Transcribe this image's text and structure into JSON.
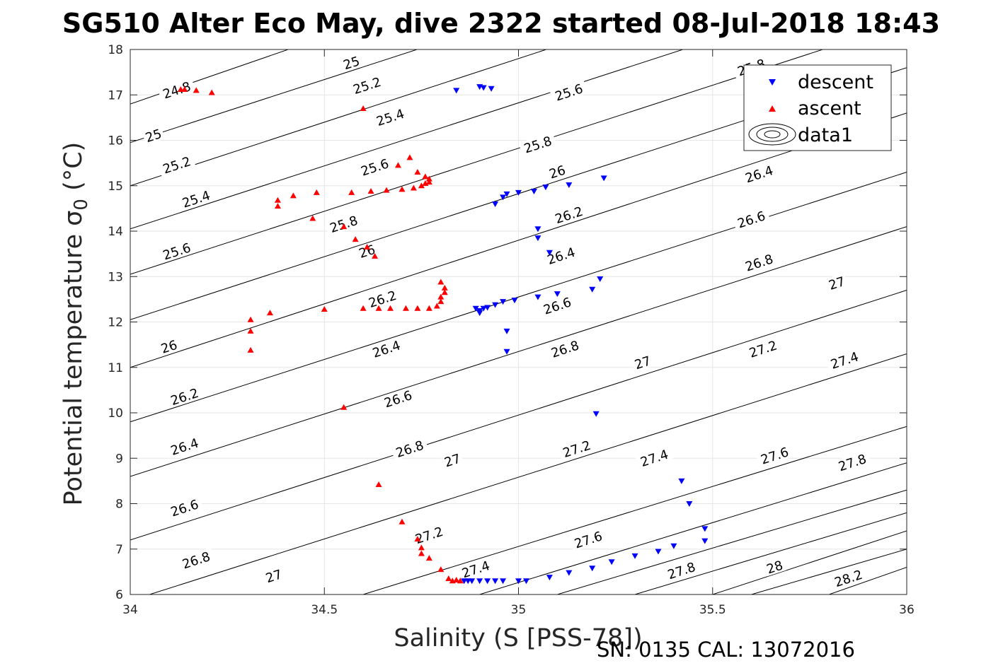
{
  "chart_data": {
    "type": "scatter",
    "title": "SG510 Alter Eco May, dive 2322 started 08-Jul-2018 18:43",
    "xlabel": "Salinity (S [PSS-78])",
    "ylabel": "Potential temperature σ₀ (°C)",
    "ylabel_main": "Potential temperature ",
    "ylabel_sigma": "σ",
    "ylabel_sub": "0",
    "ylabel_unit": " (°C)",
    "footer": "SN: 0135  CAL: 13072016",
    "xlim": [
      34,
      36
    ],
    "ylim": [
      6,
      18
    ],
    "xticks": [
      "34",
      "34.5",
      "35",
      "35.5",
      "36"
    ],
    "yticks": [
      "6",
      "7",
      "8",
      "9",
      "10",
      "11",
      "12",
      "13",
      "14",
      "15",
      "16",
      "17",
      "18"
    ],
    "grid": true,
    "legend_position": "top-right",
    "colors": {
      "descent": "#0000ff",
      "ascent": "#ff0000",
      "contour": "#000000",
      "grid": "#e6e6e6"
    },
    "series": [
      {
        "name": "descent",
        "marker": "triangle-down",
        "color": "#0000ff",
        "points": [
          [
            34.84,
            17.1
          ],
          [
            34.9,
            17.18
          ],
          [
            34.91,
            17.16
          ],
          [
            34.93,
            17.14
          ],
          [
            34.94,
            14.6
          ],
          [
            34.96,
            14.75
          ],
          [
            34.97,
            14.82
          ],
          [
            35.0,
            14.85
          ],
          [
            35.04,
            14.88
          ],
          [
            35.07,
            14.97
          ],
          [
            35.13,
            15.02
          ],
          [
            35.22,
            15.17
          ],
          [
            35.05,
            14.05
          ],
          [
            35.05,
            13.85
          ],
          [
            35.08,
            13.53
          ],
          [
            34.89,
            12.3
          ],
          [
            34.9,
            12.25
          ],
          [
            34.9,
            12.2
          ],
          [
            34.91,
            12.3
          ],
          [
            34.92,
            12.32
          ],
          [
            34.94,
            12.38
          ],
          [
            34.96,
            12.45
          ],
          [
            34.99,
            12.48
          ],
          [
            35.05,
            12.55
          ],
          [
            35.1,
            12.62
          ],
          [
            35.19,
            12.72
          ],
          [
            35.21,
            12.95
          ],
          [
            34.97,
            11.8
          ],
          [
            34.97,
            11.35
          ],
          [
            35.2,
            9.98
          ],
          [
            35.42,
            8.5
          ],
          [
            35.44,
            8.0
          ],
          [
            35.48,
            7.45
          ],
          [
            35.48,
            7.18
          ],
          [
            34.86,
            6.3
          ],
          [
            34.87,
            6.3
          ],
          [
            34.88,
            6.3
          ],
          [
            34.9,
            6.3
          ],
          [
            34.92,
            6.3
          ],
          [
            34.94,
            6.3
          ],
          [
            34.96,
            6.3
          ],
          [
            35.0,
            6.3
          ],
          [
            35.02,
            6.3
          ],
          [
            35.08,
            6.38
          ],
          [
            35.13,
            6.48
          ],
          [
            35.19,
            6.58
          ],
          [
            35.24,
            6.72
          ],
          [
            35.3,
            6.85
          ],
          [
            35.36,
            6.95
          ],
          [
            35.4,
            7.07
          ]
        ]
      },
      {
        "name": "ascent",
        "marker": "triangle-up",
        "color": "#ff0000",
        "points": [
          [
            34.13,
            17.12
          ],
          [
            34.14,
            17.12
          ],
          [
            34.17,
            17.1
          ],
          [
            34.21,
            17.05
          ],
          [
            34.6,
            16.7
          ],
          [
            34.72,
            15.62
          ],
          [
            34.69,
            15.45
          ],
          [
            34.74,
            15.3
          ],
          [
            34.76,
            15.2
          ],
          [
            34.77,
            15.15
          ],
          [
            34.77,
            15.08
          ],
          [
            34.76,
            15.05
          ],
          [
            34.75,
            15.0
          ],
          [
            34.73,
            14.95
          ],
          [
            34.7,
            14.92
          ],
          [
            34.66,
            14.9
          ],
          [
            34.62,
            14.88
          ],
          [
            34.57,
            14.85
          ],
          [
            34.48,
            14.85
          ],
          [
            34.42,
            14.78
          ],
          [
            34.38,
            14.68
          ],
          [
            34.38,
            14.55
          ],
          [
            34.47,
            14.28
          ],
          [
            34.55,
            14.1
          ],
          [
            34.58,
            13.82
          ],
          [
            34.61,
            13.65
          ],
          [
            34.63,
            13.45
          ],
          [
            34.8,
            12.88
          ],
          [
            34.81,
            12.75
          ],
          [
            34.81,
            12.65
          ],
          [
            34.8,
            12.55
          ],
          [
            34.8,
            12.45
          ],
          [
            34.79,
            12.35
          ],
          [
            34.77,
            12.3
          ],
          [
            34.74,
            12.3
          ],
          [
            34.71,
            12.3
          ],
          [
            34.67,
            12.3
          ],
          [
            34.64,
            12.3
          ],
          [
            34.6,
            12.3
          ],
          [
            34.5,
            12.28
          ],
          [
            34.36,
            12.2
          ],
          [
            34.31,
            12.05
          ],
          [
            34.31,
            11.8
          ],
          [
            34.31,
            11.38
          ],
          [
            34.55,
            10.12
          ],
          [
            34.64,
            8.42
          ],
          [
            34.7,
            7.6
          ],
          [
            34.74,
            7.22
          ],
          [
            34.75,
            7.03
          ],
          [
            34.75,
            6.9
          ],
          [
            34.77,
            6.8
          ],
          [
            34.8,
            6.55
          ],
          [
            34.82,
            6.35
          ],
          [
            34.83,
            6.3
          ],
          [
            34.84,
            6.32
          ],
          [
            34.85,
            6.3
          ]
        ]
      }
    ],
    "contours": {
      "name": "data1",
      "levels": [
        "24.8",
        "25",
        "25.2",
        "25.4",
        "25.6",
        "25.8",
        "26",
        "26.2",
        "26.4",
        "26.6",
        "26.8",
        "27",
        "27.2",
        "27.4",
        "27.6",
        "27.8",
        "28",
        "28.2"
      ],
      "lines": [
        {
          "level": "24.8",
          "pts": [
            [
              34.0,
              16.8
            ],
            [
              36.0,
              22.7
            ]
          ]
        },
        {
          "level": "25",
          "pts": [
            [
              34.0,
              15.95
            ],
            [
              36.0,
              21.5
            ]
          ]
        },
        {
          "level": "25.2",
          "pts": [
            [
              34.0,
              15.0
            ],
            [
              36.0,
              20.6
            ]
          ]
        },
        {
          "level": "25.4",
          "pts": [
            [
              34.0,
              14.05
            ],
            [
              36.0,
              19.6
            ]
          ]
        },
        {
          "level": "25.6",
          "pts": [
            [
              34.0,
              13.05
            ],
            [
              36.0,
              18.6
            ]
          ]
        },
        {
          "level": "25.8",
          "pts": [
            [
              34.0,
              12.05
            ],
            [
              36.0,
              17.6
            ]
          ]
        },
        {
          "level": "26",
          "pts": [
            [
              34.0,
              11.0
            ],
            [
              36.0,
              16.6
            ]
          ]
        },
        {
          "level": "26.2",
          "pts": [
            [
              34.0,
              9.8
            ],
            [
              36.0,
              15.3
            ]
          ]
        },
        {
          "level": "26.4",
          "pts": [
            [
              34.0,
              8.6
            ],
            [
              36.0,
              14.1
            ]
          ]
        },
        {
          "level": "26.6",
          "pts": [
            [
              34.0,
              7.2
            ],
            [
              36.0,
              12.7
            ]
          ]
        },
        {
          "level": "26.8",
          "pts": [
            [
              34.05,
              6.0
            ],
            [
              36.0,
              11.3
            ]
          ]
        },
        {
          "level": "27",
          "pts": [
            [
              34.6,
              6.0
            ],
            [
              36.0,
              9.7
            ]
          ]
        },
        {
          "level": "27.2",
          "pts": [
            [
              34.9,
              6.0
            ],
            [
              36.0,
              8.9
            ]
          ]
        },
        {
          "level": "27.4",
          "pts": [
            [
              35.1,
              6.0
            ],
            [
              36.0,
              8.3
            ]
          ]
        },
        {
          "level": "27.6",
          "pts": [
            [
              35.3,
              6.0
            ],
            [
              36.0,
              7.8
            ]
          ]
        },
        {
          "level": "27.8",
          "pts": [
            [
              35.5,
              6.0
            ],
            [
              36.0,
              7.4
            ]
          ]
        },
        {
          "level": "28",
          "pts": [
            [
              35.6,
              6.0
            ],
            [
              36.0,
              7.0
            ]
          ]
        },
        {
          "level": "28.2",
          "pts": [
            [
              35.8,
              6.0
            ],
            [
              36.0,
              6.6
            ]
          ]
        }
      ],
      "labels": [
        {
          "text": "24.8",
          "at": [
            34.12,
            17.1
          ]
        },
        {
          "text": "25",
          "at": [
            34.57,
            17.7
          ]
        },
        {
          "text": "25",
          "at": [
            34.06,
            16.1
          ]
        },
        {
          "text": "25.2",
          "at": [
            34.61,
            17.2
          ]
        },
        {
          "text": "25.2",
          "at": [
            34.12,
            15.45
          ]
        },
        {
          "text": "25.4",
          "at": [
            34.67,
            16.5
          ]
        },
        {
          "text": "25.4",
          "at": [
            34.17,
            14.7
          ]
        },
        {
          "text": "25.6",
          "at": [
            34.63,
            15.4
          ]
        },
        {
          "text": "25.6",
          "at": [
            35.13,
            17.05
          ]
        },
        {
          "text": "25.6",
          "at": [
            34.12,
            13.55
          ]
        },
        {
          "text": "25.8",
          "at": [
            34.55,
            14.15
          ]
        },
        {
          "text": "25.8",
          "at": [
            35.05,
            15.9
          ]
        },
        {
          "text": "25.8",
          "at": [
            35.6,
            17.6
          ]
        },
        {
          "text": "26",
          "at": [
            34.61,
            13.55
          ]
        },
        {
          "text": "26",
          "at": [
            35.1,
            15.3
          ]
        },
        {
          "text": "26",
          "at": [
            34.1,
            11.45
          ]
        },
        {
          "text": "26.2",
          "at": [
            34.65,
            12.5
          ]
        },
        {
          "text": "26.2",
          "at": [
            35.13,
            14.35
          ]
        },
        {
          "text": "26.2",
          "at": [
            34.14,
            10.35
          ]
        },
        {
          "text": "26.4",
          "at": [
            34.66,
            11.4
          ]
        },
        {
          "text": "26.4",
          "at": [
            35.11,
            13.45
          ]
        },
        {
          "text": "26.4",
          "at": [
            35.62,
            15.25
          ]
        },
        {
          "text": "26.4",
          "at": [
            34.14,
            9.25
          ]
        },
        {
          "text": "26.6",
          "at": [
            34.69,
            10.3
          ]
        },
        {
          "text": "26.6",
          "at": [
            35.1,
            12.35
          ]
        },
        {
          "text": "26.6",
          "at": [
            35.6,
            14.25
          ]
        },
        {
          "text": "26.6",
          "at": [
            34.14,
            7.9
          ]
        },
        {
          "text": "26.8",
          "at": [
            34.72,
            9.2
          ]
        },
        {
          "text": "26.8",
          "at": [
            35.12,
            11.4
          ]
        },
        {
          "text": "26.8",
          "at": [
            35.62,
            13.3
          ]
        },
        {
          "text": "26.8",
          "at": [
            34.17,
            6.75
          ]
        },
        {
          "text": "27",
          "at": [
            34.83,
            8.95
          ]
        },
        {
          "text": "27",
          "at": [
            35.32,
            11.1
          ]
        },
        {
          "text": "27",
          "at": [
            35.82,
            12.85
          ]
        },
        {
          "text": "27",
          "at": [
            34.37,
            6.4
          ]
        },
        {
          "text": "27.2",
          "at": [
            34.77,
            7.3
          ]
        },
        {
          "text": "27.2",
          "at": [
            35.15,
            9.2
          ]
        },
        {
          "text": "27.2",
          "at": [
            35.63,
            11.4
          ]
        },
        {
          "text": "27.4",
          "at": [
            34.89,
            6.55
          ]
        },
        {
          "text": "27.4",
          "at": [
            35.35,
            9.0
          ]
        },
        {
          "text": "27.4",
          "at": [
            35.84,
            11.15
          ]
        },
        {
          "text": "27.6",
          "at": [
            35.18,
            7.2
          ]
        },
        {
          "text": "27.6",
          "at": [
            35.66,
            9.05
          ]
        },
        {
          "text": "27.8",
          "at": [
            35.42,
            6.52
          ]
        },
        {
          "text": "27.8",
          "at": [
            35.86,
            8.9
          ]
        },
        {
          "text": "28",
          "at": [
            35.66,
            6.6
          ]
        },
        {
          "text": "28.2",
          "at": [
            35.85,
            6.35
          ]
        }
      ]
    }
  },
  "legend": {
    "items": [
      {
        "label": "descent",
        "symbol": "triangle-down",
        "color": "#0000ff"
      },
      {
        "label": "ascent",
        "symbol": "triangle-up",
        "color": "#ff0000"
      },
      {
        "label": "data1",
        "symbol": "contour-icon",
        "color": "#000000"
      }
    ]
  }
}
